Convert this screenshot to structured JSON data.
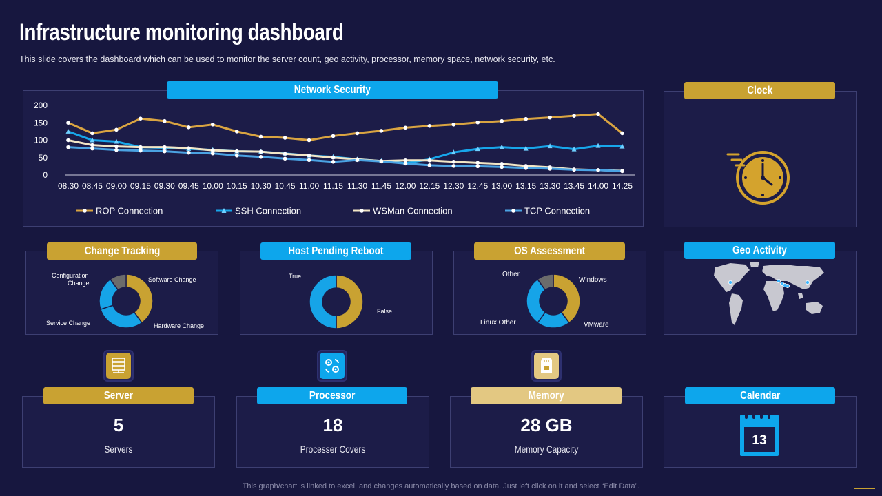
{
  "header": {
    "title": "Infrastructure monitoring dashboard",
    "subtitle": "This slide covers the dashboard which can be used to monitor the server count, geo activity, processor, memory space, network security, etc."
  },
  "network_security": {
    "label": "Network Security",
    "chart_data": {
      "type": "line",
      "x": [
        "08.30",
        "08.45",
        "09.00",
        "09.15",
        "09.30",
        "09.45",
        "10.00",
        "10.15",
        "10.30",
        "10.45",
        "11.00",
        "11.15",
        "11.30",
        "11.45",
        "12.00",
        "12.15",
        "12.30",
        "12.45",
        "13.00",
        "13.15",
        "13.30",
        "13.45",
        "14.00",
        "14.25"
      ],
      "ylim": [
        0,
        200
      ],
      "yticks": [
        0,
        50,
        100,
        150,
        200
      ],
      "series": [
        {
          "name": "ROP Connection",
          "color": "#d9a441",
          "marker": "circle",
          "values": [
            150,
            120,
            130,
            162,
            155,
            137,
            145,
            125,
            110,
            107,
            100,
            112,
            120,
            127,
            136,
            141,
            145,
            151,
            155,
            161,
            165,
            170,
            175,
            120
          ]
        },
        {
          "name": "SSH Connection",
          "color": "#17a6ea",
          "marker": "triangle",
          "values": [
            125,
            100,
            96,
            80,
            78,
            75,
            72,
            68,
            67,
            62,
            56,
            52,
            45,
            40,
            34,
            45,
            65,
            75,
            80,
            76,
            83,
            74,
            84,
            82
          ]
        },
        {
          "name": "WSMan Connection",
          "color": "#f2e6c6",
          "marker": "circle",
          "values": [
            100,
            86,
            82,
            80,
            80,
            77,
            71,
            68,
            67,
            61,
            56,
            50,
            45,
            40,
            42,
            42,
            38,
            35,
            32,
            26,
            22,
            16,
            14,
            12
          ]
        },
        {
          "name": "TCP Connection",
          "color": "#4ba3e3",
          "marker": "circle",
          "values": [
            80,
            76,
            72,
            70,
            68,
            64,
            62,
            56,
            52,
            47,
            43,
            38,
            43,
            39,
            33,
            28,
            26,
            25,
            23,
            20,
            18,
            15,
            14,
            11
          ]
        }
      ]
    }
  },
  "clock": {
    "label": "Clock"
  },
  "change_tracking": {
    "label": "Change Tracking",
    "chart_data": {
      "type": "pie",
      "slices": [
        {
          "label": "Software Change",
          "value": 40,
          "color": "#c9a232"
        },
        {
          "label": "Hardware Change",
          "value": 30,
          "color": "#16a4e8"
        },
        {
          "label": "Service Change",
          "value": 20,
          "color": "#16a4e8"
        },
        {
          "label": "Configuration Change",
          "value": 10,
          "color": "#6b6b6b"
        }
      ]
    },
    "labels": {
      "config_line1": "Configuration",
      "config_line2": "Change",
      "software": "Software Change",
      "hardware": "Hardware Change",
      "service": "Service Change"
    }
  },
  "host_pending_reboot": {
    "label": "Host Pending Reboot",
    "chart_data": {
      "type": "pie",
      "slices": [
        {
          "label": "False",
          "value": 50,
          "color": "#c9a232"
        },
        {
          "label": "True",
          "value": 50,
          "color": "#16a4e8"
        }
      ]
    },
    "labels": {
      "true": "True",
      "false": "False"
    }
  },
  "os_assessment": {
    "label": "OS Assessment",
    "chart_data": {
      "type": "pie",
      "slices": [
        {
          "label": "Windows",
          "value": 40,
          "color": "#c9a232"
        },
        {
          "label": "VMware",
          "value": 20,
          "color": "#16a4e8"
        },
        {
          "label": "Linux Other",
          "value": 30,
          "color": "#16a4e8"
        },
        {
          "label": "Other",
          "value": 10,
          "color": "#6b6b6b"
        }
      ]
    },
    "labels": {
      "other": "Other",
      "windows": "Windows",
      "linux": "Linux Other",
      "vmware": "VMware"
    }
  },
  "geo_activity": {
    "label": "Geo Activity"
  },
  "server": {
    "label": "Server",
    "value": "5",
    "caption": "Servers",
    "icon": "server-icon"
  },
  "processor": {
    "label": "Processor",
    "value": "18",
    "caption": "Processer Covers",
    "icon": "gears-icon"
  },
  "memory": {
    "label": "Memory",
    "value": "28 GB",
    "caption": "Memory Capacity",
    "icon": "memory-card-icon"
  },
  "calendar": {
    "label": "Calendar",
    "day": "13"
  },
  "footer": "This graph/chart is linked to excel, and changes automatically based on data. Just left click on it and select “Edit Data”."
}
